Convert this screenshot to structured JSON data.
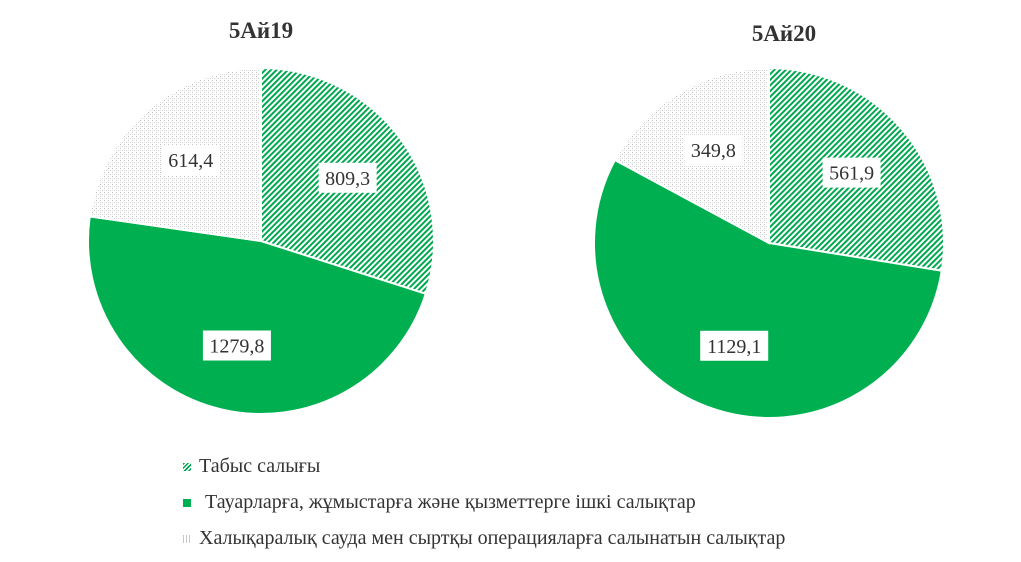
{
  "chart_data": [
    {
      "type": "pie",
      "title": "5Ай19",
      "categories": [
        "Табыс салығы",
        "Тауарларға, жұмыстарға және қызметтерге ішкі салықтар",
        "Халықаралық сауда мен сыртқы операцияларға салынатын салықтар"
      ],
      "values": [
        809.3,
        1279.8,
        614.4
      ],
      "labels": [
        "809,3",
        "1279,8",
        "614,4"
      ]
    },
    {
      "type": "pie",
      "title": "5Ай20",
      "categories": [
        "Табыс салығы",
        "Тауарларға, жұмыстарға және қызметтерге ішкі салықтар",
        "Халықаралық сауда мен сыртқы операцияларға салынатын салықтар"
      ],
      "values": [
        561.9,
        1129.1,
        349.8
      ],
      "labels": [
        "561,9",
        "1129,1",
        "349,8"
      ]
    }
  ],
  "legend": {
    "position": "bottom",
    "items": [
      {
        "label": "Табыс салығы",
        "pattern": "diagonal-hatch",
        "color": "#00a84f"
      },
      {
        "label": "Тауарларға, жұмыстарға және қызметтерге ішкі салықтар",
        "pattern": "solid",
        "color": "#00b050"
      },
      {
        "label": "Халықаралық сауда мен сыртқы операцияларға салынатын салықтар",
        "pattern": "dotted",
        "color": "#c8c8c8"
      }
    ]
  }
}
